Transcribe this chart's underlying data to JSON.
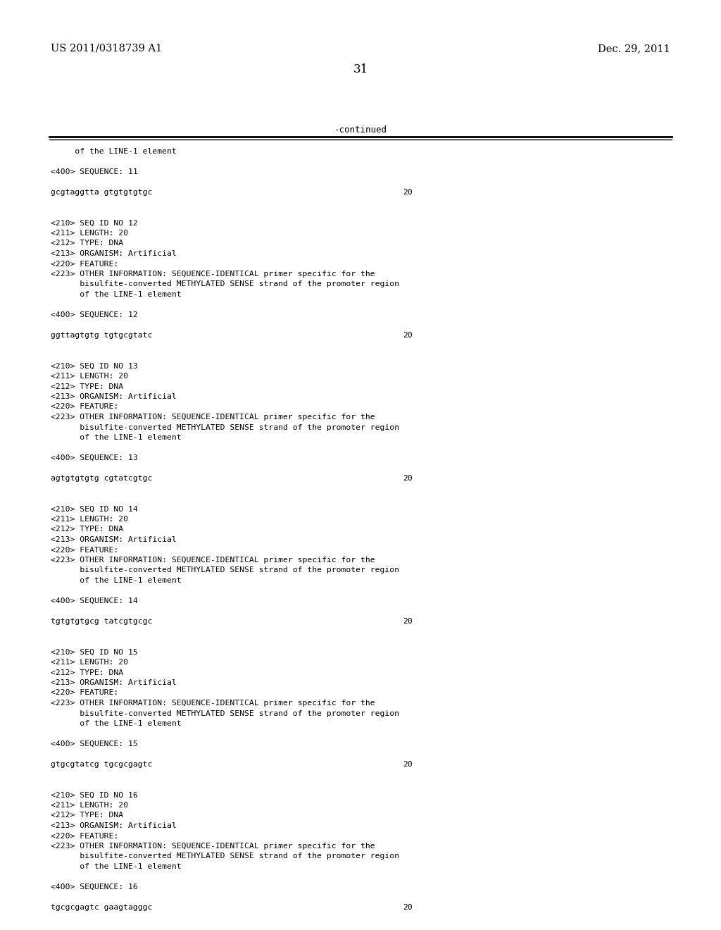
{
  "background_color": "#ffffff",
  "header_left": "US 2011/0318739 A1",
  "header_right": "Dec. 29, 2011",
  "page_number": "31",
  "continued_label": "-continued",
  "content_lines": [
    {
      "text": "     of the LINE-1 element",
      "num": null
    },
    {
      "text": "",
      "num": null
    },
    {
      "text": "<400> SEQUENCE: 11",
      "num": null
    },
    {
      "text": "",
      "num": null
    },
    {
      "text": "gcgtaggtta gtgtgtgtgc",
      "num": "20"
    },
    {
      "text": "",
      "num": null
    },
    {
      "text": "",
      "num": null
    },
    {
      "text": "<210> SEQ ID NO 12",
      "num": null
    },
    {
      "text": "<211> LENGTH: 20",
      "num": null
    },
    {
      "text": "<212> TYPE: DNA",
      "num": null
    },
    {
      "text": "<213> ORGANISM: Artificial",
      "num": null
    },
    {
      "text": "<220> FEATURE:",
      "num": null
    },
    {
      "text": "<223> OTHER INFORMATION: SEQUENCE-IDENTICAL primer specific for the",
      "num": null
    },
    {
      "text": "      bisulfite-converted METHYLATED SENSE strand of the promoter region",
      "num": null
    },
    {
      "text": "      of the LINE-1 element",
      "num": null
    },
    {
      "text": "",
      "num": null
    },
    {
      "text": "<400> SEQUENCE: 12",
      "num": null
    },
    {
      "text": "",
      "num": null
    },
    {
      "text": "ggttagtgtg tgtgcgtatc",
      "num": "20"
    },
    {
      "text": "",
      "num": null
    },
    {
      "text": "",
      "num": null
    },
    {
      "text": "<210> SEQ ID NO 13",
      "num": null
    },
    {
      "text": "<211> LENGTH: 20",
      "num": null
    },
    {
      "text": "<212> TYPE: DNA",
      "num": null
    },
    {
      "text": "<213> ORGANISM: Artificial",
      "num": null
    },
    {
      "text": "<220> FEATURE:",
      "num": null
    },
    {
      "text": "<223> OTHER INFORMATION: SEQUENCE-IDENTICAL primer specific for the",
      "num": null
    },
    {
      "text": "      bisulfite-converted METHYLATED SENSE strand of the promoter region",
      "num": null
    },
    {
      "text": "      of the LINE-1 element",
      "num": null
    },
    {
      "text": "",
      "num": null
    },
    {
      "text": "<400> SEQUENCE: 13",
      "num": null
    },
    {
      "text": "",
      "num": null
    },
    {
      "text": "agtgtgtgtg cgtatcgtgc",
      "num": "20"
    },
    {
      "text": "",
      "num": null
    },
    {
      "text": "",
      "num": null
    },
    {
      "text": "<210> SEQ ID NO 14",
      "num": null
    },
    {
      "text": "<211> LENGTH: 20",
      "num": null
    },
    {
      "text": "<212> TYPE: DNA",
      "num": null
    },
    {
      "text": "<213> ORGANISM: Artificial",
      "num": null
    },
    {
      "text": "<220> FEATURE:",
      "num": null
    },
    {
      "text": "<223> OTHER INFORMATION: SEQUENCE-IDENTICAL primer specific for the",
      "num": null
    },
    {
      "text": "      bisulfite-converted METHYLATED SENSE strand of the promoter region",
      "num": null
    },
    {
      "text": "      of the LINE-1 element",
      "num": null
    },
    {
      "text": "",
      "num": null
    },
    {
      "text": "<400> SEQUENCE: 14",
      "num": null
    },
    {
      "text": "",
      "num": null
    },
    {
      "text": "tgtgtgtgcg tatcgtgcgc",
      "num": "20"
    },
    {
      "text": "",
      "num": null
    },
    {
      "text": "",
      "num": null
    },
    {
      "text": "<210> SEQ ID NO 15",
      "num": null
    },
    {
      "text": "<211> LENGTH: 20",
      "num": null
    },
    {
      "text": "<212> TYPE: DNA",
      "num": null
    },
    {
      "text": "<213> ORGANISM: Artificial",
      "num": null
    },
    {
      "text": "<220> FEATURE:",
      "num": null
    },
    {
      "text": "<223> OTHER INFORMATION: SEQUENCE-IDENTICAL primer specific for the",
      "num": null
    },
    {
      "text": "      bisulfite-converted METHYLATED SENSE strand of the promoter region",
      "num": null
    },
    {
      "text": "      of the LINE-1 element",
      "num": null
    },
    {
      "text": "",
      "num": null
    },
    {
      "text": "<400> SEQUENCE: 15",
      "num": null
    },
    {
      "text": "",
      "num": null
    },
    {
      "text": "gtgcgtatcg tgcgcgagtc",
      "num": "20"
    },
    {
      "text": "",
      "num": null
    },
    {
      "text": "",
      "num": null
    },
    {
      "text": "<210> SEQ ID NO 16",
      "num": null
    },
    {
      "text": "<211> LENGTH: 20",
      "num": null
    },
    {
      "text": "<212> TYPE: DNA",
      "num": null
    },
    {
      "text": "<213> ORGANISM: Artificial",
      "num": null
    },
    {
      "text": "<220> FEATURE:",
      "num": null
    },
    {
      "text": "<223> OTHER INFORMATION: SEQUENCE-IDENTICAL primer specific for the",
      "num": null
    },
    {
      "text": "      bisulfite-converted METHYLATED SENSE strand of the promoter region",
      "num": null
    },
    {
      "text": "      of the LINE-1 element",
      "num": null
    },
    {
      "text": "",
      "num": null
    },
    {
      "text": "<400> SEQUENCE: 16",
      "num": null
    },
    {
      "text": "",
      "num": null
    },
    {
      "text": "tgcgcgagtc gaagtagggc",
      "num": "20"
    }
  ]
}
